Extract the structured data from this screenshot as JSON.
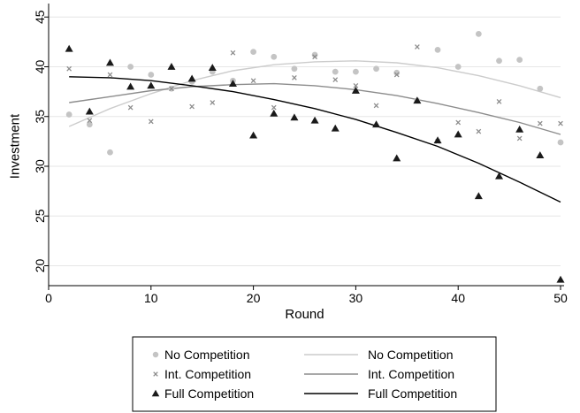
{
  "chart_data": {
    "type": "scatter",
    "xlabel": "Round",
    "ylabel": "Investment",
    "xlim": [
      0,
      50
    ],
    "ylim": [
      18,
      46
    ],
    "xticks": [
      0,
      10,
      20,
      30,
      40,
      50
    ],
    "yticks": [
      20,
      25,
      30,
      35,
      40,
      45
    ],
    "grid": true,
    "legend_position": "bottom",
    "series": [
      {
        "name": "No Competition",
        "kind": "points",
        "marker": "circle",
        "color": "#c4c4c4",
        "x": [
          2,
          4,
          6,
          8,
          10,
          12,
          14,
          16,
          18,
          20,
          22,
          24,
          26,
          28,
          30,
          32,
          34,
          36,
          38,
          40,
          42,
          44,
          46,
          48,
          50
        ],
        "y": [
          35.2,
          34.2,
          31.4,
          40.0,
          39.2,
          37.8,
          38.5,
          39.5,
          38.6,
          41.5,
          41.0,
          39.8,
          41.2,
          39.5,
          39.5,
          39.8,
          39.4,
          36.6,
          41.7,
          40.0,
          43.3,
          40.6,
          40.7,
          37.8,
          32.4
        ]
      },
      {
        "name": "Int. Competition",
        "kind": "points",
        "marker": "x",
        "color": "#8c8c8c",
        "x": [
          2,
          4,
          6,
          8,
          10,
          12,
          14,
          16,
          18,
          20,
          22,
          24,
          26,
          28,
          30,
          32,
          34,
          36,
          38,
          40,
          42,
          44,
          46,
          48,
          50
        ],
        "y": [
          39.8,
          34.6,
          39.2,
          35.9,
          34.5,
          37.8,
          36.0,
          36.4,
          41.4,
          38.6,
          35.9,
          38.9,
          41.0,
          38.7,
          38.1,
          36.1,
          39.2,
          42.0,
          32.5,
          34.4,
          33.5,
          36.5,
          32.8,
          34.3,
          34.3
        ]
      },
      {
        "name": "Full Competition",
        "kind": "points",
        "marker": "triangle",
        "color": "#1a1a1a",
        "x": [
          2,
          4,
          6,
          8,
          10,
          12,
          14,
          16,
          18,
          20,
          22,
          24,
          26,
          28,
          30,
          32,
          34,
          36,
          38,
          40,
          42,
          44,
          46,
          48,
          50
        ],
        "y": [
          41.8,
          35.5,
          40.4,
          38.0,
          38.1,
          40.0,
          38.8,
          39.9,
          38.3,
          33.1,
          35.3,
          34.9,
          34.6,
          33.8,
          37.6,
          34.2,
          30.8,
          36.6,
          32.6,
          33.2,
          27.0,
          29.0,
          33.7,
          31.1,
          18.6
        ]
      },
      {
        "name": "No Competition",
        "kind": "fit",
        "color": "#cccccc",
        "x": [
          2,
          6,
          10,
          14,
          18,
          22,
          26,
          30,
          34,
          38,
          42,
          46,
          50
        ],
        "y": [
          34.0,
          35.8,
          37.3,
          38.6,
          39.6,
          40.2,
          40.5,
          40.6,
          40.4,
          39.9,
          39.1,
          38.1,
          36.9
        ]
      },
      {
        "name": "Int. Competition",
        "kind": "fit",
        "color": "#8c8c8c",
        "x": [
          2,
          6,
          10,
          14,
          18,
          22,
          26,
          30,
          34,
          38,
          42,
          46,
          50
        ],
        "y": [
          36.4,
          37.0,
          37.6,
          38.0,
          38.2,
          38.3,
          38.1,
          37.7,
          37.1,
          36.3,
          35.4,
          34.4,
          33.2
        ]
      },
      {
        "name": "Full Competition",
        "kind": "fit",
        "color": "#000000",
        "x": [
          2,
          6,
          10,
          14,
          18,
          22,
          26,
          30,
          34,
          38,
          42,
          46,
          50
        ],
        "y": [
          39.0,
          38.9,
          38.6,
          38.1,
          37.5,
          36.7,
          35.8,
          34.7,
          33.4,
          32.0,
          30.3,
          28.4,
          26.4
        ]
      }
    ],
    "legend": {
      "rows": [
        {
          "left": "No Competition",
          "right": "No Competition"
        },
        {
          "left": "Int. Competition",
          "right": "Int. Competition"
        },
        {
          "left": "Full Competition",
          "right": "Full Competition"
        }
      ]
    }
  }
}
